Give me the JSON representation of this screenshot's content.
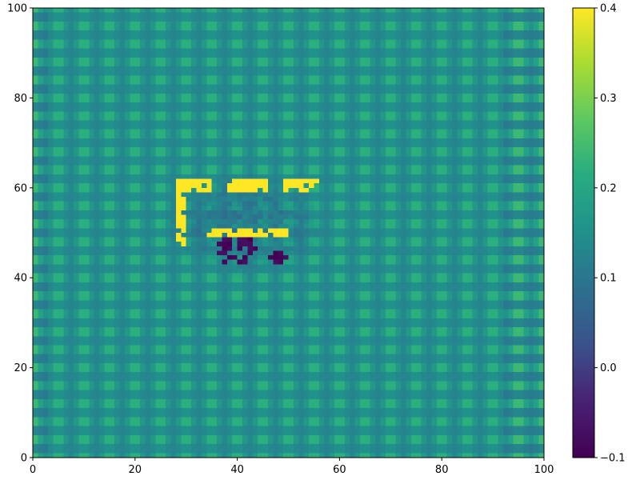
{
  "chart_data": {
    "type": "heatmap",
    "title": "",
    "xlabel": "",
    "ylabel": "",
    "xlim": [
      0,
      100
    ],
    "ylim": [
      0,
      100
    ],
    "x_ticks": [
      0,
      20,
      40,
      60,
      80,
      100
    ],
    "y_ticks": [
      0,
      20,
      40,
      60,
      80,
      100
    ],
    "grid": false,
    "colormap": "viridis",
    "colorbar": {
      "range": [
        -0.1,
        0.4
      ],
      "ticks": [
        -0.1,
        0.0,
        0.1,
        0.2,
        0.3,
        0.4
      ],
      "tick_labels": [
        "−0.1",
        "0.0",
        "0.1",
        "0.2",
        "0.3",
        "0.4"
      ],
      "placement": "right"
    },
    "grid_resolution": [
      100,
      100
    ],
    "background_pattern": {
      "description": "periodic checker-like texture",
      "period_x": 5,
      "period_y": 4,
      "base_value": 0.16,
      "amplitude": 0.06
    },
    "features": [
      {
        "name": "left vertical stroke",
        "x": [
          28,
          30
        ],
        "y": [
          47,
          62
        ],
        "value": 0.4
      },
      {
        "name": "top stroke",
        "x": [
          28,
          56
        ],
        "y": [
          59,
          62
        ],
        "value": 0.4
      },
      {
        "name": "lower stroke",
        "x": [
          34,
          50
        ],
        "y": [
          49,
          51
        ],
        "value": 0.4
      },
      {
        "name": "dark cluster",
        "x": [
          34,
          50
        ],
        "y": [
          41,
          50
        ],
        "value": -0.1
      },
      {
        "name": "disturbed region",
        "x": [
          25,
          58
        ],
        "y": [
          40,
          64
        ],
        "value": 0.05
      }
    ]
  }
}
